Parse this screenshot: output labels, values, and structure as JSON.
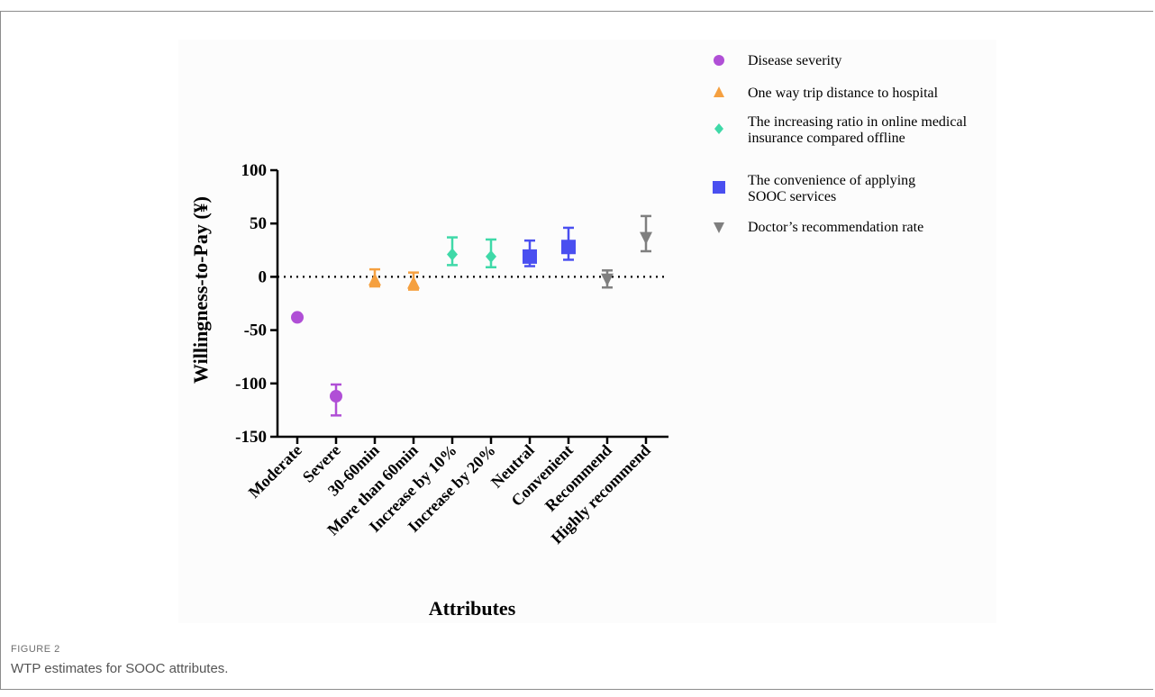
{
  "figure": {
    "label": "FIGURE 2",
    "caption": "WTP estimates for SOOC attributes."
  },
  "chart_data": {
    "type": "scatter",
    "xlabel": "Attributes",
    "ylabel": "Willingness-to-Pay (¥)",
    "ylim": [
      -150,
      100
    ],
    "yticks": [
      100,
      50,
      0,
      -50,
      -100,
      -150
    ],
    "categories": [
      "Moderate",
      "Severe",
      "30-60min",
      "More than 60min",
      "Increase by 10%",
      "Increase by 20%",
      "Neutral",
      "Convenient",
      "Recommend",
      "Highly recommend"
    ],
    "reference_line": 0,
    "grid": false,
    "legend_position": "right",
    "series": [
      {
        "name": "Disease severity",
        "marker": "circle",
        "color": "#b04fd6",
        "points": [
          {
            "category": "Moderate",
            "value": -38,
            "low": null,
            "high": null
          },
          {
            "category": "Severe",
            "value": -112,
            "low": -130,
            "high": -101
          }
        ]
      },
      {
        "name": "One way trip distance to hospital",
        "marker": "triangle-up",
        "color": "#f5a040",
        "points": [
          {
            "category": "30-60min",
            "value": -3,
            "low": -9,
            "high": 7
          },
          {
            "category": "More than 60min",
            "value": -6,
            "low": -12,
            "high": 4
          }
        ]
      },
      {
        "name": "The increasing ratio in online medical insurance compared offline",
        "marker": "diamond",
        "color": "#3fd9a8",
        "points": [
          {
            "category": "Increase by 10%",
            "value": 21,
            "low": 11,
            "high": 37
          },
          {
            "category": "Increase by 20%",
            "value": 19,
            "low": 9,
            "high": 35
          }
        ]
      },
      {
        "name": "The convenience of applying SOOC services",
        "marker": "square",
        "color": "#4a4ff0",
        "points": [
          {
            "category": "Neutral",
            "value": 19,
            "low": 10,
            "high": 34
          },
          {
            "category": "Convenient",
            "value": 28,
            "low": 16,
            "high": 46
          }
        ]
      },
      {
        "name": "Doctor’s recommendation rate",
        "marker": "triangle-down",
        "color": "#7f7f7f",
        "points": [
          {
            "category": "Recommend",
            "value": -2,
            "low": -10,
            "high": 6
          },
          {
            "category": "Highly recommend",
            "value": 37,
            "low": 24,
            "high": 57
          }
        ]
      }
    ]
  }
}
